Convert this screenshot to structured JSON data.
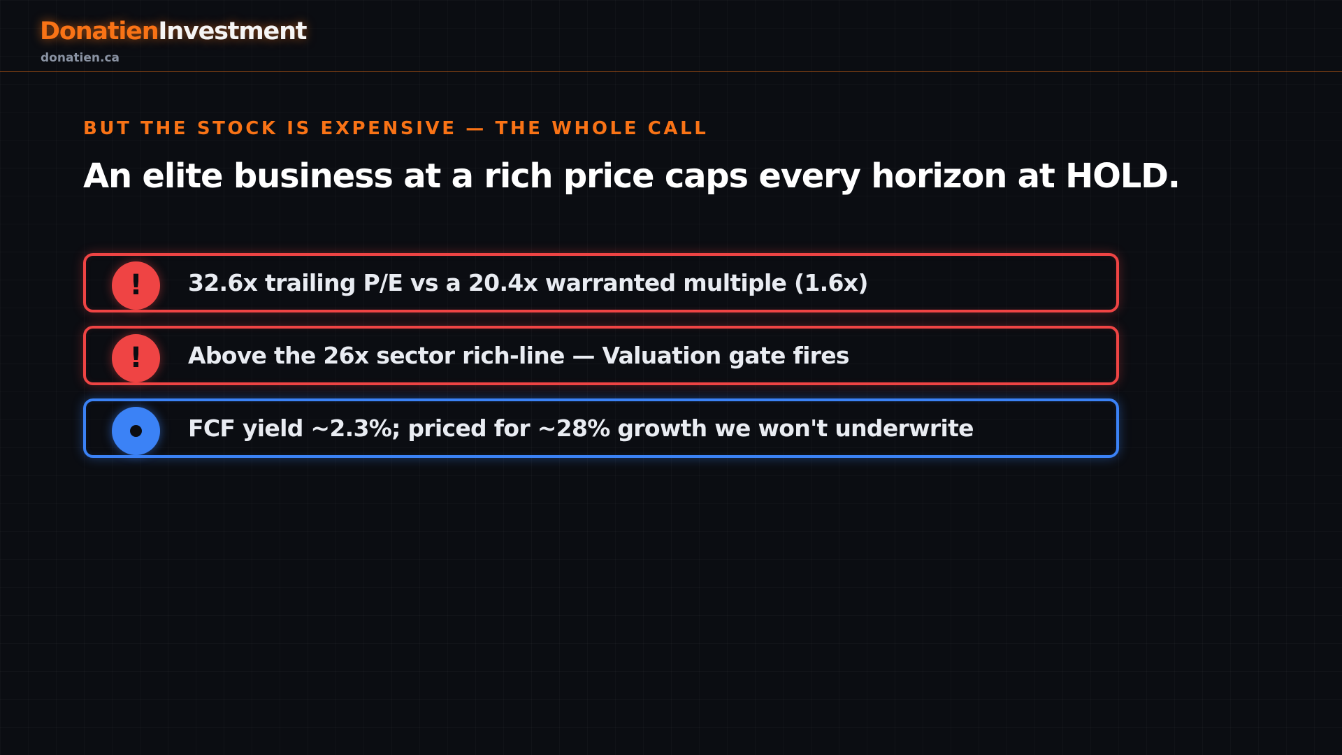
{
  "brand": {
    "name_part1": "Donatien",
    "name_part2": "Investment",
    "domain": "donatien.ca"
  },
  "slide": {
    "eyebrow": "BUT THE STOCK IS EXPENSIVE — THE WHOLE CALL",
    "headline": "An elite business at a rich price caps every horizon at HOLD."
  },
  "points": [
    {
      "icon": "exclamation-icon",
      "badge_glyph": "!",
      "color": "#ef4444",
      "text": "32.6x trailing P/E vs a 20.4x warranted multiple (1.6x)"
    },
    {
      "icon": "exclamation-icon",
      "badge_glyph": "!",
      "color": "#ef4444",
      "text": "Above the 26x sector rich-line — Valuation gate fires"
    },
    {
      "icon": "dot-icon",
      "color": "#3b82f6",
      "text": "FCF yield ~2.3%; priced for ~28% growth we won't underwrite"
    }
  ],
  "colors": {
    "accent": "#f97316",
    "warning": "#ef4444",
    "info": "#3b82f6",
    "background": "#0b0d12"
  }
}
